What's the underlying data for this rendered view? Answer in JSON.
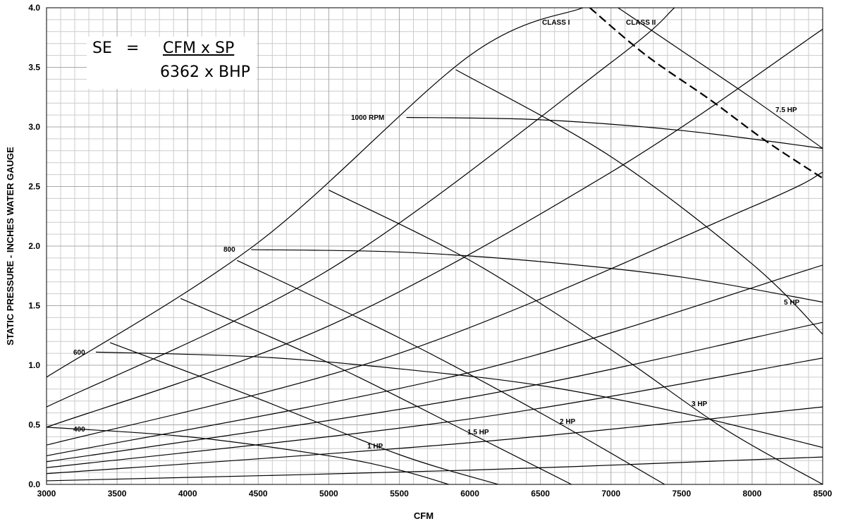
{
  "formula": {
    "lhs": "SE",
    "equals": "=",
    "numerator": "CFM x SP",
    "denominator": "6362 x BHP"
  },
  "chart_data": {
    "type": "line",
    "title": "",
    "xlabel": "CFM",
    "ylabel": "STATIC PRESSURE - INCHES WATER GAUGE",
    "xlim": [
      3000,
      8500
    ],
    "ylim": [
      0,
      4.0
    ],
    "x_ticks": [
      3000,
      3500,
      4000,
      4500,
      5000,
      5500,
      6000,
      6500,
      7000,
      7500,
      8000,
      8500
    ],
    "y_ticks": [
      "0.0",
      "0.5",
      "1.0",
      "1.5",
      "2.0",
      "2.5",
      "3.0",
      "3.5",
      "4.0"
    ],
    "grid": true,
    "system_curves": [
      {
        "x": [
          3000,
          4500,
          6000,
          6800
        ],
        "y": [
          0.9,
          2.03,
          3.6,
          4.0
        ]
      },
      {
        "x": [
          3000,
          5000,
          7000,
          7450
        ],
        "y": [
          0.65,
          1.8,
          3.54,
          4.0
        ]
      },
      {
        "x": [
          3000,
          5000,
          7000,
          8500
        ],
        "y": [
          0.48,
          1.33,
          2.62,
          3.82
        ]
      },
      {
        "x": [
          3000,
          5500,
          8000,
          8500
        ],
        "y": [
          0.33,
          1.1,
          2.33,
          2.62
        ]
      },
      {
        "x": [
          3000,
          6000,
          8500
        ],
        "y": [
          0.24,
          0.94,
          1.84
        ]
      },
      {
        "x": [
          3000,
          6000,
          8500
        ],
        "y": [
          0.19,
          0.73,
          1.36
        ]
      },
      {
        "x": [
          3000,
          6000,
          8500
        ],
        "y": [
          0.14,
          0.55,
          1.06
        ]
      },
      {
        "x": [
          3000,
          6000,
          8500
        ],
        "y": [
          0.09,
          0.35,
          0.65
        ]
      },
      {
        "x": [
          3000,
          6000,
          8500
        ],
        "y": [
          0.03,
          0.12,
          0.23
        ]
      }
    ],
    "rpm_curves": [
      {
        "label": "400",
        "x": [
          3000,
          4000,
          5000,
          5500,
          5850
        ],
        "y": [
          0.48,
          0.4,
          0.24,
          0.12,
          0.0
        ]
      },
      {
        "label": "600",
        "x": [
          3350,
          4500,
          5500,
          6500,
          7500,
          8500
        ],
        "y": [
          1.11,
          1.07,
          0.97,
          0.83,
          0.6,
          0.31
        ]
      },
      {
        "label": "800",
        "x": [
          4450,
          5500,
          6500,
          7500,
          8500
        ],
        "y": [
          1.97,
          1.95,
          1.87,
          1.74,
          1.53
        ]
      },
      {
        "label": "1000 RPM",
        "x": [
          5550,
          6500,
          7500,
          8500
        ],
        "y": [
          3.08,
          3.06,
          2.97,
          2.82
        ]
      }
    ],
    "hp_curves": [
      {
        "label": "1 HP",
        "x": [
          3450,
          4500,
          5500,
          6200
        ],
        "y": [
          1.19,
          0.72,
          0.25,
          0.0
        ]
      },
      {
        "label": "1.5 HP",
        "x": [
          3950,
          5000,
          6000,
          6720
        ],
        "y": [
          1.56,
          1.02,
          0.43,
          0.0
        ]
      },
      {
        "label": "2 HP",
        "x": [
          4350,
          5500,
          6500,
          7380
        ],
        "y": [
          1.88,
          1.23,
          0.6,
          0.0
        ]
      },
      {
        "label": "3 HP",
        "x": [
          5000,
          6000,
          7000,
          7800,
          8500
        ],
        "y": [
          2.47,
          1.88,
          1.13,
          0.47,
          0.0
        ]
      },
      {
        "label": "5 HP",
        "x": [
          5900,
          7000,
          8000,
          8500
        ],
        "y": [
          3.48,
          2.75,
          1.85,
          1.26
        ]
      },
      {
        "label": "7.5 HP",
        "x": [
          7050,
          7500,
          8000,
          8500
        ],
        "y": [
          4.0,
          3.64,
          3.24,
          2.82
        ]
      }
    ],
    "class_boundary": {
      "x": [
        6850,
        7250,
        7700,
        8100,
        8500
      ],
      "y": [
        4.0,
        3.6,
        3.23,
        2.88,
        2.57
      ]
    },
    "class_labels": [
      "CLASS I",
      "CLASS II"
    ],
    "annotation_labels": [
      {
        "text": "1000 RPM"
      },
      {
        "text": "800"
      },
      {
        "text": "600"
      },
      {
        "text": "400"
      },
      {
        "text": "1 HP"
      },
      {
        "text": "1.5 HP"
      },
      {
        "text": "2 HP"
      },
      {
        "text": "3 HP"
      },
      {
        "text": "5 HP"
      },
      {
        "text": "7.5 HP"
      },
      {
        "text": "CLASS I"
      },
      {
        "text": "CLASS II"
      }
    ]
  }
}
